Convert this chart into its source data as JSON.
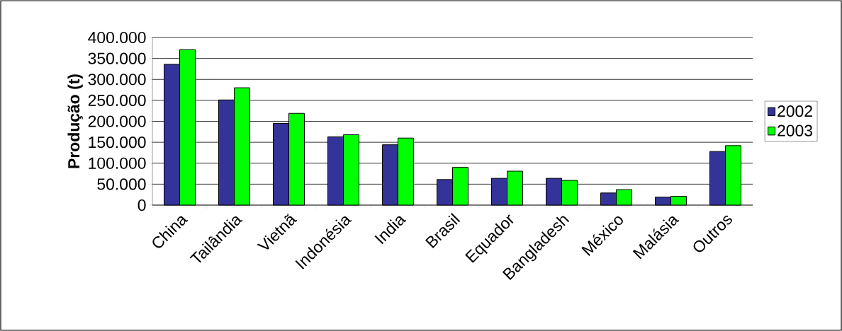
{
  "chart_data": {
    "type": "bar",
    "ylabel": "Produção (t)",
    "categories": [
      "China",
      "Tailândia",
      "Vietnã",
      "Indonésia",
      "India",
      "Brasil",
      "Equador",
      "Bangladesh",
      "México",
      "Malásia",
      "Outros"
    ],
    "series": [
      {
        "name": "2002",
        "color": "#333399",
        "values": [
          336000,
          251000,
          195000,
          163000,
          144000,
          61000,
          64000,
          64000,
          29000,
          19000,
          128000
        ]
      },
      {
        "name": "2003",
        "color": "#00ff00",
        "values": [
          371000,
          280000,
          219000,
          168000,
          160000,
          90000,
          81000,
          59000,
          37000,
          21000,
          142000
        ]
      }
    ],
    "ylim": [
      0,
      400000
    ],
    "yticks": [
      0,
      {
        "value": 50000,
        "label": "50.000"
      },
      {
        "value": 100000,
        "label": "100.000"
      },
      {
        "value": 150000,
        "label": "150.000"
      },
      {
        "value": 200000,
        "label": "200.000"
      },
      {
        "value": 250000,
        "label": "250.000"
      },
      {
        "value": 300000,
        "label": "300.000"
      },
      {
        "value": 350000,
        "label": "350.000"
      },
      {
        "value": 400000,
        "label": "400.000"
      }
    ],
    "grid": "y",
    "legend": "right"
  }
}
